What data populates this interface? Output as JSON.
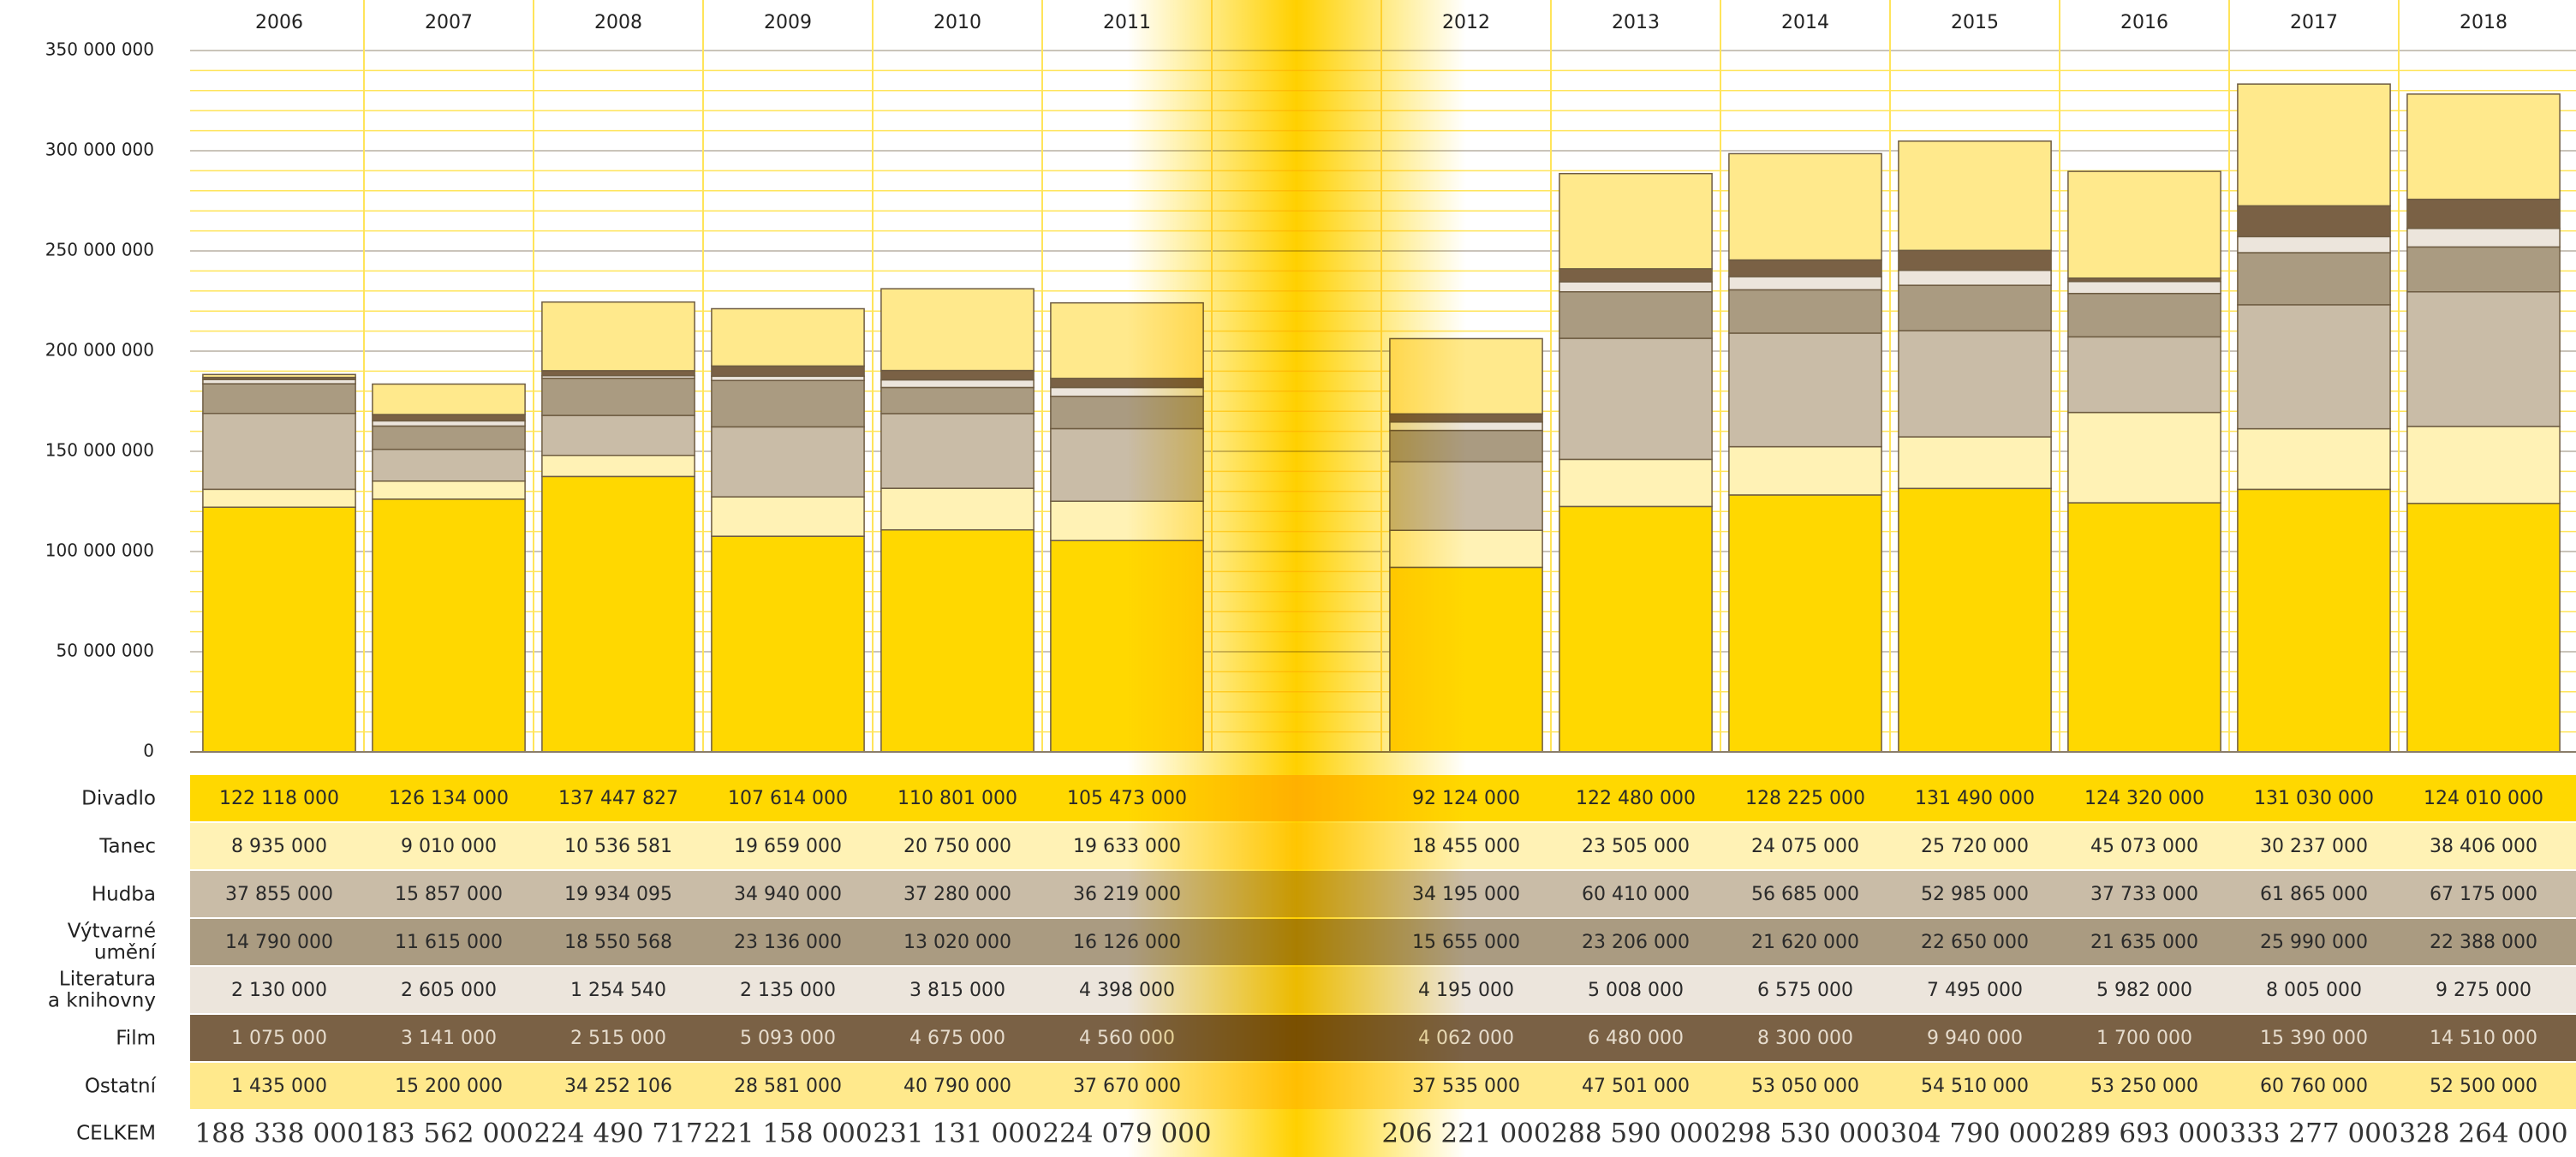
{
  "chart_data": {
    "type": "bar",
    "stacked": true,
    "categories": [
      "2006",
      "2007",
      "2008",
      "2009",
      "2010",
      "2011",
      null,
      "2012",
      "2013",
      "2014",
      "2015",
      "2016",
      "2017",
      "2018"
    ],
    "ylim": [
      0,
      350000000
    ],
    "yticks": [
      0,
      {
        "value": 50000000,
        "label": "50 000 000"
      },
      {
        "value": 100000000,
        "label": "100 000 000"
      },
      {
        "value": 150000000,
        "label": "150 000 000"
      },
      {
        "value": 200000000,
        "label": "200 000 000"
      },
      {
        "value": 250000000,
        "label": "250 000 000"
      },
      {
        "value": 300000000,
        "label": "300 000 000"
      },
      {
        "value": 350000000,
        "label": "350 000 000"
      }
    ],
    "grid": true,
    "series": [
      {
        "name": "Divadlo",
        "color": "#ffd800",
        "values": [
          122118000,
          126134000,
          137447827,
          107614000,
          110801000,
          105473000,
          null,
          92124000,
          122480000,
          128225000,
          131490000,
          124320000,
          131030000,
          124010000
        ],
        "value_labels": [
          "122 118 000",
          "126 134 000",
          "137 447 827",
          "107 614 000",
          "110 801 000",
          "105 473 000",
          null,
          "92 124 000",
          "122 480 000",
          "128 225 000",
          "131 490 000",
          "124 320 000",
          "131 030 000",
          "124 010 000"
        ]
      },
      {
        "name": "Tanec",
        "color": "#fff2b5",
        "values": [
          8935000,
          9010000,
          10536581,
          19659000,
          20750000,
          19633000,
          null,
          18455000,
          23505000,
          24075000,
          25720000,
          45073000,
          30237000,
          38406000
        ],
        "value_labels": [
          "8 935 000",
          "9 010 000",
          "10 536 581",
          "19 659 000",
          "20 750 000",
          "19 633 000",
          null,
          "18 455 000",
          "23 505 000",
          "24 075 000",
          "25 720 000",
          "45 073 000",
          "30 237 000",
          "38 406 000"
        ]
      },
      {
        "name": "Hudba",
        "color": "#c9bca7",
        "values": [
          37855000,
          15857000,
          19934095,
          34940000,
          37280000,
          36219000,
          null,
          34195000,
          60410000,
          56685000,
          52985000,
          37733000,
          61865000,
          67175000
        ],
        "value_labels": [
          "37 855 000",
          "15 857 000",
          "19 934 095",
          "34 940 000",
          "37 280 000",
          "36 219 000",
          null,
          "34 195 000",
          "60 410 000",
          "56 685 000",
          "52 985 000",
          "37 733 000",
          "61 865 000",
          "67 175 000"
        ]
      },
      {
        "name": "Výtvarné umění",
        "color": "#aa9b81",
        "values": [
          14790000,
          11615000,
          18550568,
          23136000,
          13020000,
          16126000,
          null,
          15655000,
          23206000,
          21620000,
          22650000,
          21635000,
          25990000,
          22388000
        ],
        "value_labels": [
          "14 790 000",
          "11 615 000",
          "18 550 568",
          "23 136 000",
          "13 020 000",
          "16 126 000",
          null,
          "15 655 000",
          "23 206 000",
          "21 620 000",
          "22 650 000",
          "21 635 000",
          "25 990 000",
          "22 388 000"
        ]
      },
      {
        "name": "Literatura a knihovny",
        "color": "#ece5dc",
        "values": [
          2130000,
          2605000,
          1254540,
          2135000,
          3815000,
          4398000,
          null,
          4195000,
          5008000,
          6575000,
          7495000,
          5982000,
          8005000,
          9275000
        ],
        "value_labels": [
          "2 130 000",
          "2 605 000",
          "1 254 540",
          "2 135 000",
          "3 815 000",
          "4 398 000",
          null,
          "4 195 000",
          "5 008 000",
          "6 575 000",
          "7 495 000",
          "5 982 000",
          "8 005 000",
          "9 275 000"
        ]
      },
      {
        "name": "Film",
        "color": "#7a6145",
        "values": [
          1075000,
          3141000,
          2515000,
          5093000,
          4675000,
          4560000,
          null,
          4062000,
          6480000,
          8300000,
          9940000,
          1700000,
          15390000,
          14510000
        ],
        "value_labels": [
          "1 075 000",
          "3 141 000",
          "2 515 000",
          "5 093 000",
          "4 675 000",
          "4 560 000",
          null,
          "4 062 000",
          "6 480 000",
          "8 300 000",
          "9 940 000",
          "1 700 000",
          "15 390 000",
          "14 510 000"
        ]
      },
      {
        "name": "Ostatní",
        "color": "#ffe98c",
        "values": [
          1435000,
          15200000,
          34252106,
          28581000,
          40790000,
          37670000,
          null,
          37535000,
          47501000,
          53050000,
          54510000,
          53250000,
          60760000,
          52500000
        ],
        "value_labels": [
          "1 435 000",
          "15 200 000",
          "34 252 106",
          "28 581 000",
          "40 790 000",
          "37 670 000",
          null,
          "37 535 000",
          "47 501 000",
          "53 050 000",
          "54 510 000",
          "53 250 000",
          "60 760 000",
          "52 500 000"
        ]
      }
    ],
    "total_label": "CELKEM",
    "totals": [
      188338000,
      183562000,
      224490717,
      221158000,
      231131000,
      224079000,
      null,
      206221000,
      288590000,
      298530000,
      304790000,
      289693000,
      333277000,
      328264000
    ],
    "totals_labels": [
      "188 338 000",
      "183 562 000",
      "224 490 717",
      "221 158 000",
      "231 131 000",
      "224 079 000",
      null,
      "206 221 000",
      "288 590 000",
      "298 530 000",
      "304 790 000",
      "289 693 000",
      "333 277 000",
      "328 264 000"
    ]
  }
}
